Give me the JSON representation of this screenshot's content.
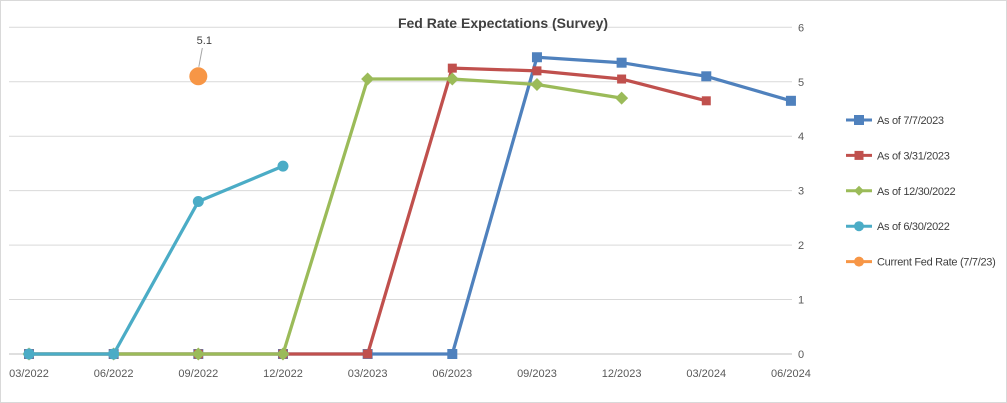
{
  "chart_data": {
    "type": "line",
    "title": "Fed Rate Expectations (Survey)",
    "categories": [
      "03/2022",
      "06/2022",
      "09/2022",
      "12/2022",
      "03/2023",
      "06/2023",
      "09/2023",
      "12/2023",
      "03/2024",
      "06/2024"
    ],
    "y_axis": {
      "min": 0,
      "max": 6,
      "step": 1,
      "side": "right",
      "tick_labels": [
        "0",
        "1",
        "2",
        "3",
        "4",
        "5",
        "6"
      ]
    },
    "grid": true,
    "legend_position": "right",
    "series": [
      {
        "name": "As of 7/7/2023",
        "color": "#4F81BD",
        "marker": "square",
        "marker_size": 10,
        "values": [
          0,
          0,
          0,
          0,
          0,
          0,
          5.45,
          5.35,
          5.1,
          4.65
        ]
      },
      {
        "name": "As of 3/31/2023",
        "color": "#C0504D",
        "marker": "square",
        "marker_size": 9,
        "values": [
          0,
          0,
          0,
          0,
          0,
          5.25,
          5.2,
          5.05,
          4.65,
          null
        ]
      },
      {
        "name": "As of 12/30/2022",
        "color": "#9BBB59",
        "marker": "diamond",
        "marker_size": 13,
        "values": [
          0,
          0,
          0,
          0,
          5.05,
          5.05,
          4.95,
          4.7,
          null,
          null
        ]
      },
      {
        "name": "As of 6/30/2022",
        "color": "#4BACC6",
        "marker": "circle",
        "marker_size": 11,
        "values": [
          0,
          0,
          2.8,
          3.45,
          null,
          null,
          null,
          null,
          null,
          null
        ]
      },
      {
        "name": "Current Fed Rate (7/7/23)",
        "color": "#F79646",
        "marker": "circle",
        "marker_size": 18,
        "values": [
          null,
          null,
          5.1,
          null,
          null,
          null,
          null,
          null,
          null,
          null
        ],
        "data_label": "5.1"
      }
    ],
    "annotation": {
      "text": "5.1",
      "category": "09/2022",
      "value": 5.1
    }
  },
  "colors": {
    "gridline": "#D9D9D9",
    "axis_line": "#BFBFBF",
    "axis_text": "#595959",
    "title_text": "#404040",
    "legend_text": "#404040",
    "border": "#D9D9D9",
    "leader_line": "#A6A6A6"
  }
}
